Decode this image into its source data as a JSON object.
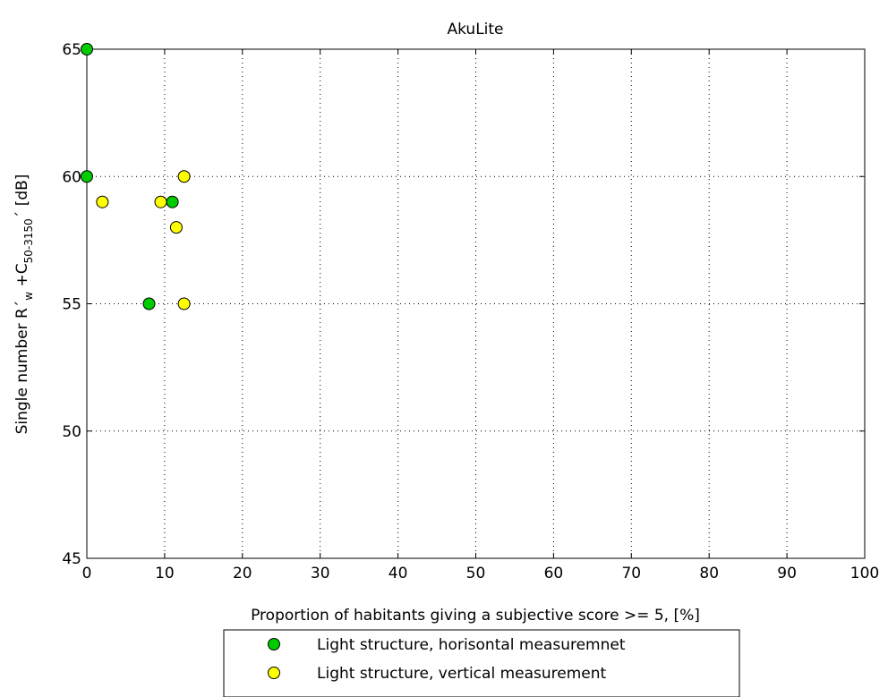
{
  "chart_data": {
    "type": "scatter",
    "title": "AkuLite",
    "xlabel": "Proportion of habitants giving a subjective score >= 5, [%]",
    "ylabel": {
      "main": "Single number R´",
      "sub_w": "w",
      "plus_c": " +C",
      "sub_range": "50-3150",
      "unit": "´ [dB]"
    },
    "xlim": [
      0,
      100
    ],
    "ylim": [
      45,
      65
    ],
    "xticks": [
      "0",
      "10",
      "20",
      "30",
      "40",
      "50",
      "60",
      "70",
      "80",
      "90",
      "100"
    ],
    "yticks": [
      "45",
      "50",
      "55",
      "60",
      "65"
    ],
    "grid": true,
    "legend_position": "bottom",
    "series": [
      {
        "name": "Light structure, horisontal measuremnet",
        "color": "#00cc00",
        "points": [
          [
            0,
            65
          ],
          [
            0,
            60
          ],
          [
            11,
            59
          ],
          [
            8,
            55
          ]
        ]
      },
      {
        "name": "Light structure, vertical measurement",
        "color": "#ffff00",
        "points": [
          [
            2,
            59
          ],
          [
            9.5,
            59
          ],
          [
            12.5,
            60
          ],
          [
            11.5,
            58
          ],
          [
            12.5,
            55
          ]
        ]
      }
    ]
  }
}
